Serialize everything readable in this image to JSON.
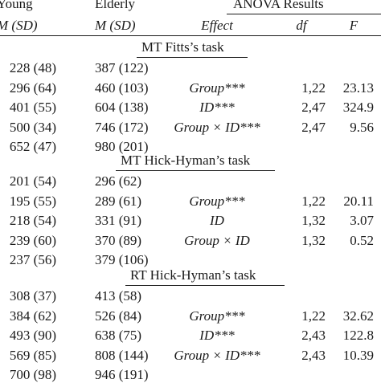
{
  "header": {
    "young": "Young",
    "elderly": "Elderly",
    "anova": "ANOVA Results",
    "young_sub": "M (SD)",
    "elderly_sub": "M (SD)",
    "effect": "Effect",
    "df": "df",
    "f": "F"
  },
  "sections": [
    {
      "title": "MT Fitts’s task",
      "rows": [
        {
          "young": "228 (48)",
          "elderly": "387 (122)",
          "effect": "",
          "df": "",
          "f": ""
        },
        {
          "young": "296 (64)",
          "elderly": "460 (103)",
          "effect": "Group***",
          "df": "1,22",
          "f": "23.13"
        },
        {
          "young": "401 (55)",
          "elderly": "604 (138)",
          "effect": "ID***",
          "df": "2,47",
          "f": "324.9"
        },
        {
          "young": "500 (34)",
          "elderly": "746 (172)",
          "effect": "Group × ID***",
          "df": "2,47",
          "f": "9.56"
        },
        {
          "young": "652 (47)",
          "elderly": "980 (201)",
          "effect": "",
          "df": "",
          "f": ""
        }
      ]
    },
    {
      "title": "MT Hick-Hyman’s task",
      "rows": [
        {
          "young": "201 (54)",
          "elderly": "296 (62)",
          "effect": "",
          "df": "",
          "f": ""
        },
        {
          "young": "195 (55)",
          "elderly": "289 (61)",
          "effect": "Group***",
          "df": "1,22",
          "f": "20.11"
        },
        {
          "young": "218 (54)",
          "elderly": "331 (91)",
          "effect": "ID",
          "df": "1,32",
          "f": "3.07"
        },
        {
          "young": "239 (60)",
          "elderly": "370 (89)",
          "effect": "Group × ID",
          "df": "1,32",
          "f": "0.52"
        },
        {
          "young": "237 (56)",
          "elderly": "379 (106)",
          "effect": "",
          "df": "",
          "f": ""
        }
      ]
    },
    {
      "title": "RT Hick-Hyman’s task",
      "rows": [
        {
          "young": "308 (37)",
          "elderly": "413 (58)",
          "effect": "",
          "df": "",
          "f": ""
        },
        {
          "young": "384 (62)",
          "elderly": "526 (84)",
          "effect": "Group***",
          "df": "1,22",
          "f": "32.62"
        },
        {
          "young": "493 (90)",
          "elderly": "638 (75)",
          "effect": "ID***",
          "df": "2,43",
          "f": "122.8"
        },
        {
          "young": "569 (85)",
          "elderly": "808 (144)",
          "effect": "Group × ID***",
          "df": "2,43",
          "f": "10.39"
        },
        {
          "young": "700 (98)",
          "elderly": "946 (191)",
          "effect": "",
          "df": "",
          "f": ""
        }
      ]
    }
  ]
}
